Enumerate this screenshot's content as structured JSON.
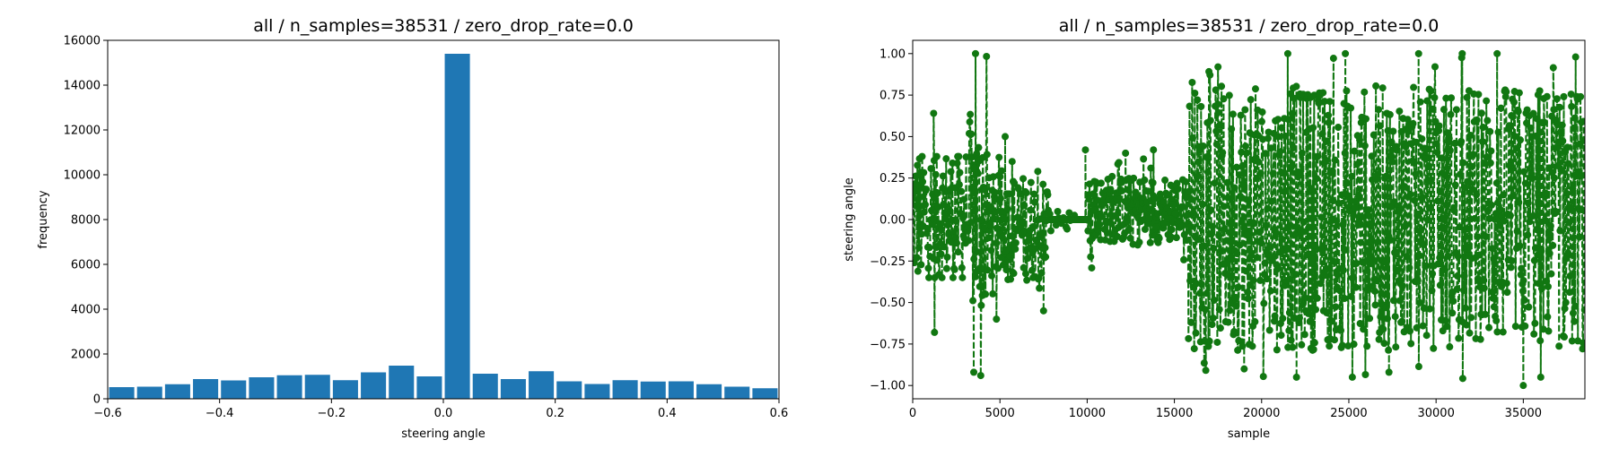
{
  "chart_data": [
    {
      "type": "bar",
      "title": "all / n_samples=38531 / zero_drop_rate=0.0",
      "xlabel": "steering angle",
      "ylabel": "frequency",
      "xlim": [
        -0.6,
        0.6
      ],
      "ylim": [
        0,
        16000
      ],
      "grid": false,
      "bar_color": "#1f77b4",
      "x_ticks": [
        -0.6,
        -0.4,
        -0.2,
        0.0,
        0.2,
        0.4,
        0.6
      ],
      "x_tick_labels": [
        "−0.6",
        "−0.4",
        "−0.2",
        "0.0",
        "0.2",
        "0.4",
        "0.6"
      ],
      "y_ticks": [
        0,
        2000,
        4000,
        6000,
        8000,
        10000,
        12000,
        14000,
        16000
      ],
      "y_tick_labels": [
        "0",
        "2000",
        "4000",
        "6000",
        "8000",
        "10000",
        "12000",
        "14000",
        "16000"
      ],
      "bin_edges": [
        -0.6,
        -0.55,
        -0.5,
        -0.45,
        -0.4,
        -0.35,
        -0.3,
        -0.25,
        -0.2,
        -0.15,
        -0.1,
        -0.05,
        0.0,
        0.05,
        0.1,
        0.15,
        0.2,
        0.25,
        0.3,
        0.35,
        0.4,
        0.45,
        0.5,
        0.55,
        0.6
      ],
      "values": [
        520,
        540,
        650,
        880,
        820,
        960,
        1050,
        1070,
        830,
        1180,
        1480,
        1000,
        15400,
        1120,
        880,
        1230,
        780,
        660,
        830,
        770,
        780,
        650,
        540,
        470
      ]
    },
    {
      "type": "line",
      "title": "all / n_samples=38531 / zero_drop_rate=0.0",
      "xlabel": "sample",
      "ylabel": "steering angle",
      "xlim": [
        0,
        38531
      ],
      "ylim": [
        -1.08,
        1.08
      ],
      "grid": false,
      "line_color": "#117711",
      "marker": "circle",
      "x_ticks": [
        0,
        5000,
        10000,
        15000,
        20000,
        25000,
        30000,
        35000
      ],
      "x_tick_labels": [
        "0",
        "5000",
        "10000",
        "15000",
        "20000",
        "25000",
        "30000",
        "35000"
      ],
      "y_ticks": [
        -1.0,
        -0.75,
        -0.5,
        -0.25,
        0.0,
        0.25,
        0.5,
        0.75,
        1.0
      ],
      "y_tick_labels": [
        "−1.00",
        "−0.75",
        "−0.50",
        "−0.25",
        "0.00",
        "0.25",
        "0.50",
        "0.75",
        "1.00"
      ],
      "segments": [
        {
          "x_start": 0,
          "x_end": 3200,
          "y_min": -0.35,
          "y_max": 0.38,
          "amp": 0.42
        },
        {
          "x_start": 3200,
          "x_end": 4300,
          "y_min": -0.95,
          "y_max": 1.0,
          "amp": 0.62
        },
        {
          "x_start": 4300,
          "x_end": 7800,
          "y_min": -0.55,
          "y_max": 0.45,
          "amp": 0.32
        },
        {
          "x_start": 7800,
          "x_end": 10000,
          "y_min": -0.12,
          "y_max": 0.1,
          "amp": 0.06
        },
        {
          "x_start": 10000,
          "x_end": 15800,
          "y_min": -0.3,
          "y_max": 0.42,
          "amp": 0.2
        },
        {
          "x_start": 15800,
          "x_end": 38531,
          "y_min": -0.98,
          "y_max": 1.0,
          "amp": 0.8
        }
      ],
      "spikes": [
        {
          "x": 1200,
          "y": 0.64
        },
        {
          "x": 1250,
          "y": -0.68
        },
        {
          "x": 3600,
          "y": 1.0
        },
        {
          "x": 3500,
          "y": -0.92
        },
        {
          "x": 3900,
          "y": -0.94
        },
        {
          "x": 4800,
          "y": -0.6
        },
        {
          "x": 5300,
          "y": 0.5
        },
        {
          "x": 7500,
          "y": -0.55
        },
        {
          "x": 9900,
          "y": 0.42
        },
        {
          "x": 12200,
          "y": 0.4
        },
        {
          "x": 13800,
          "y": 0.42
        },
        {
          "x": 19000,
          "y": -0.9
        },
        {
          "x": 22000,
          "y": -0.95
        },
        {
          "x": 25200,
          "y": -0.95
        },
        {
          "x": 27300,
          "y": -0.92
        },
        {
          "x": 35000,
          "y": -1.0
        },
        {
          "x": 36000,
          "y": -0.95
        },
        {
          "x": 17500,
          "y": 0.92
        },
        {
          "x": 21500,
          "y": 1.0
        },
        {
          "x": 24800,
          "y": 1.0
        },
        {
          "x": 29000,
          "y": 1.0
        },
        {
          "x": 31500,
          "y": 1.0
        },
        {
          "x": 33500,
          "y": 1.0
        },
        {
          "x": 38000,
          "y": 0.98
        }
      ]
    }
  ]
}
